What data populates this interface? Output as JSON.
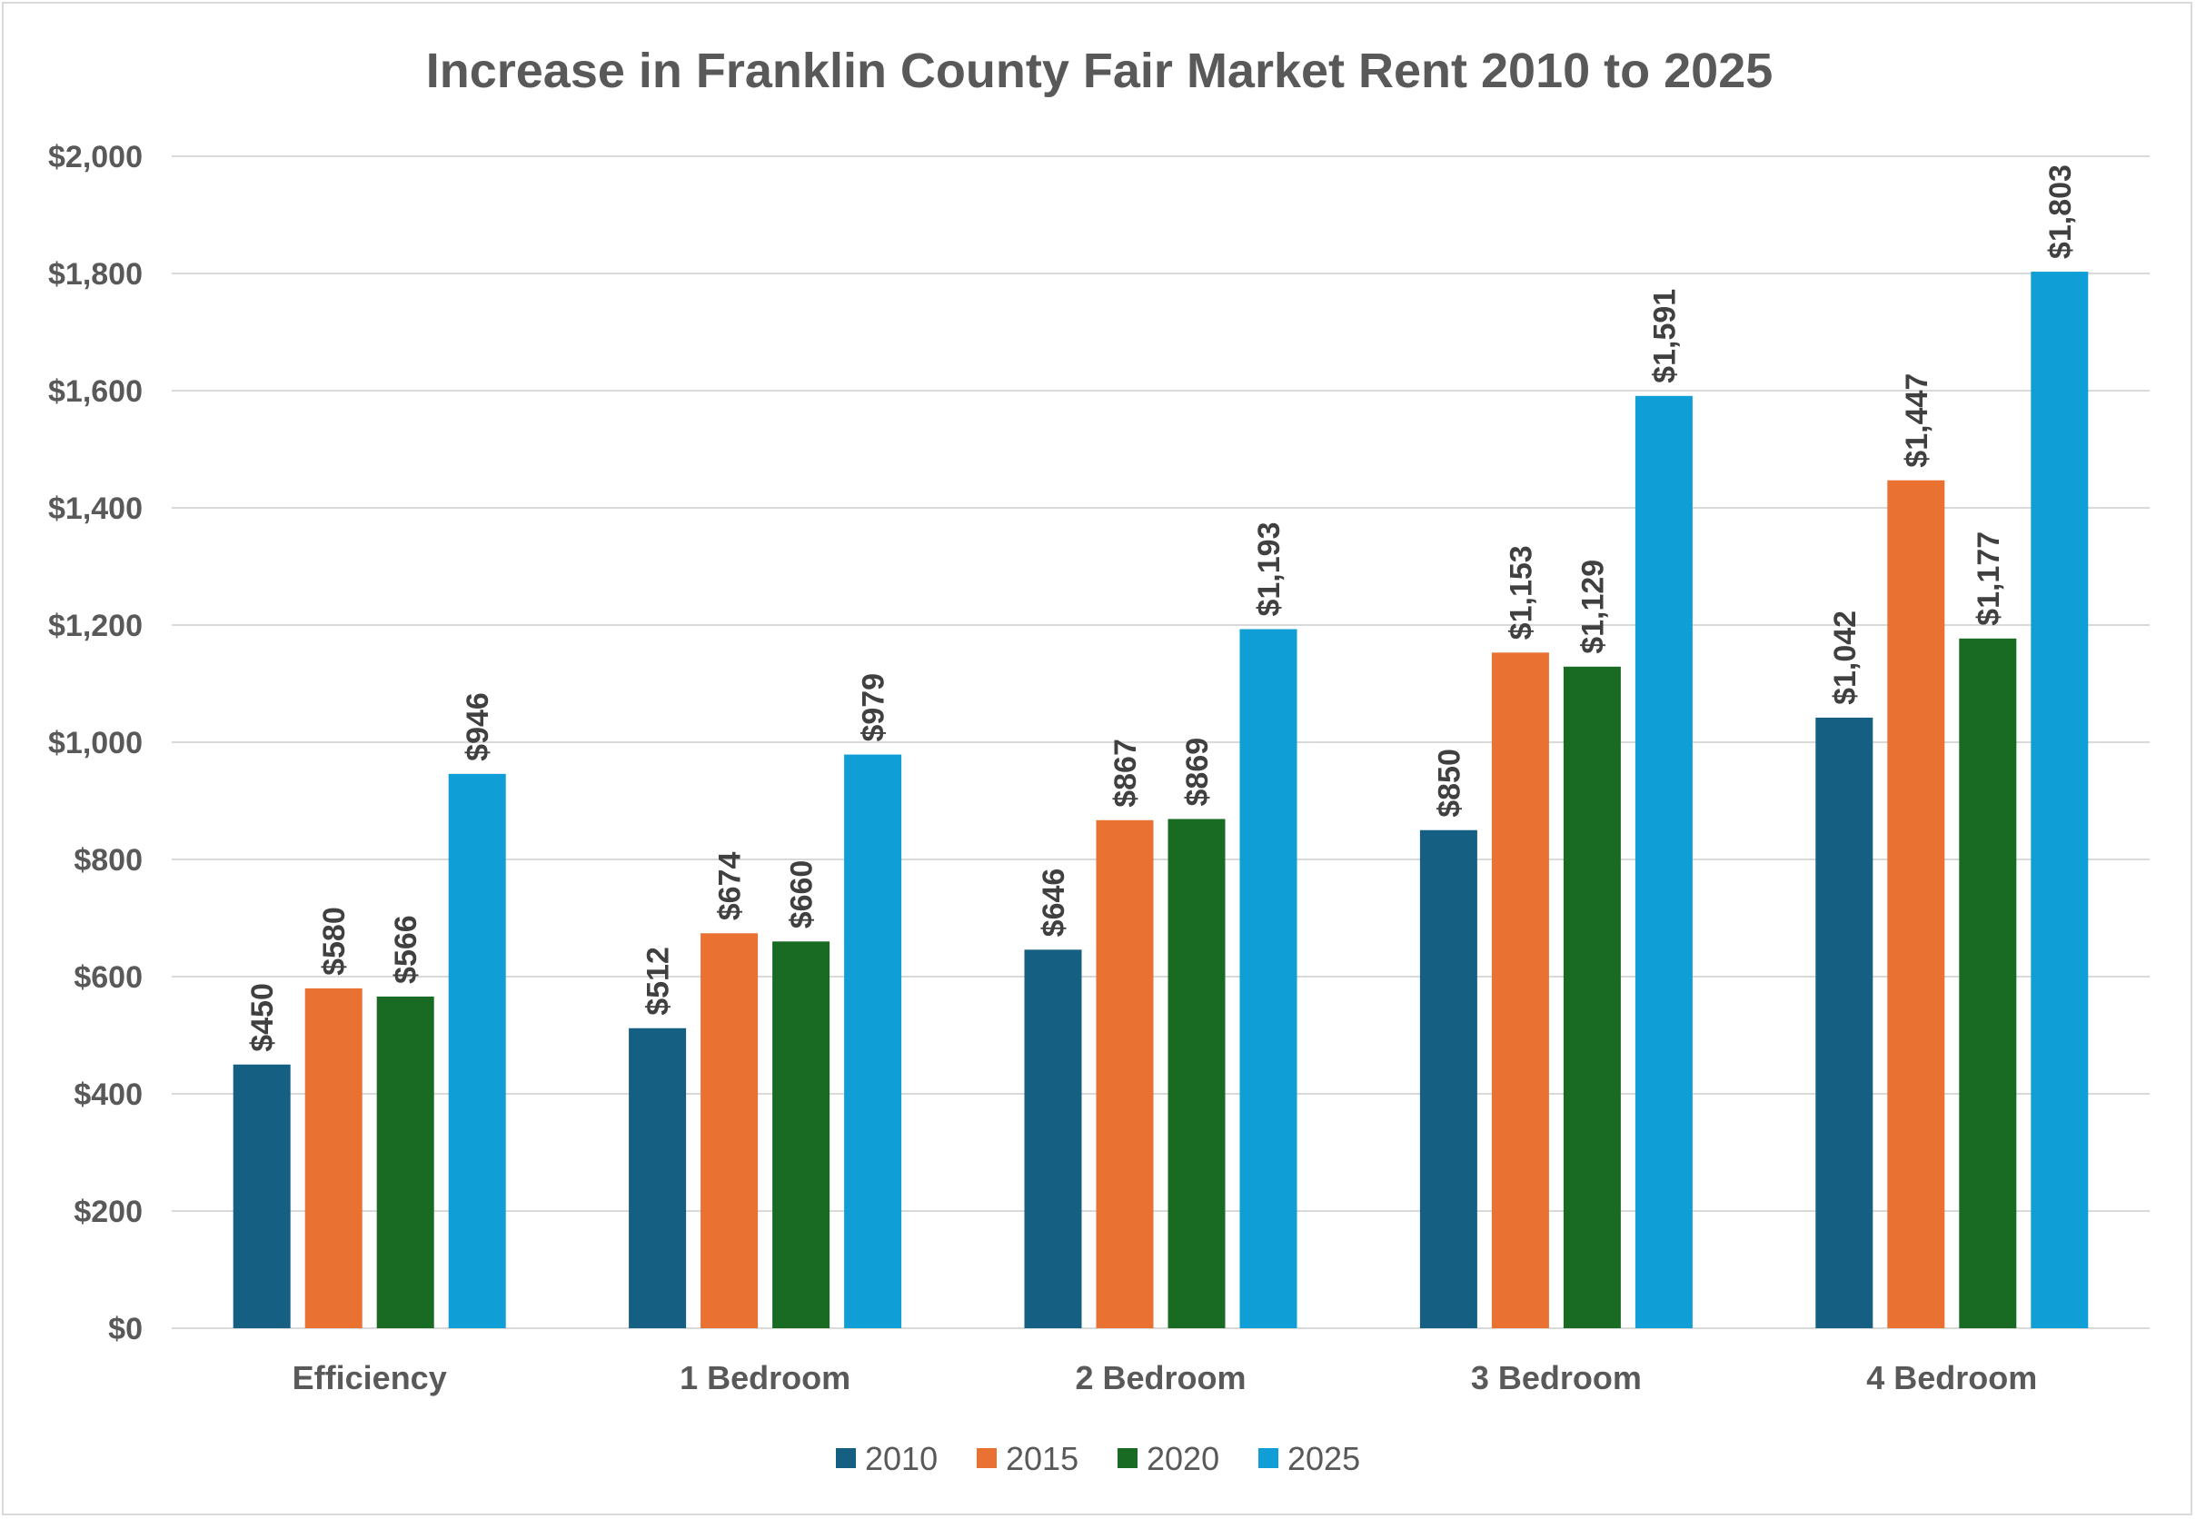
{
  "chart_data": {
    "type": "bar",
    "title": "Increase in Franklin County Fair Market Rent 2010 to 2025",
    "xlabel": "",
    "ylabel": "",
    "categories": [
      "Efficiency",
      "1 Bedroom",
      "2 Bedroom",
      "3 Bedroom",
      "4 Bedroom"
    ],
    "series": [
      {
        "name": "2010",
        "color": "#156082",
        "values": [
          450,
          512,
          646,
          850,
          1042
        ],
        "labels": [
          "$450",
          "$512",
          "$646",
          "$850",
          "$1,042"
        ]
      },
      {
        "name": "2015",
        "color": "#E97132",
        "values": [
          580,
          674,
          867,
          1153,
          1447
        ],
        "labels": [
          "$580",
          "$674",
          "$867",
          "$1,153",
          "$1,447"
        ]
      },
      {
        "name": "2020",
        "color": "#196B24",
        "values": [
          566,
          660,
          869,
          1129,
          1177
        ],
        "labels": [
          "$566",
          "$660",
          "$869",
          "$1,129",
          "$1,177"
        ]
      },
      {
        "name": "2025",
        "color": "#0F9ED5",
        "values": [
          946,
          979,
          1193,
          1591,
          1803
        ],
        "labels": [
          "$946",
          "$979",
          "$1,193",
          "$1,591",
          "$1,803"
        ]
      }
    ],
    "ylim": [
      0,
      2000
    ],
    "yticks": [
      0,
      200,
      400,
      600,
      800,
      1000,
      1200,
      1400,
      1600,
      1800,
      2000
    ],
    "ytick_labels": [
      "$0",
      "$200",
      "$400",
      "$600",
      "$800",
      "$1,000",
      "$1,200",
      "$1,400",
      "$1,600",
      "$1,800",
      "$2,000"
    ],
    "grid": true,
    "legend_position": "bottom",
    "data_labels": "rotated, above bars"
  }
}
